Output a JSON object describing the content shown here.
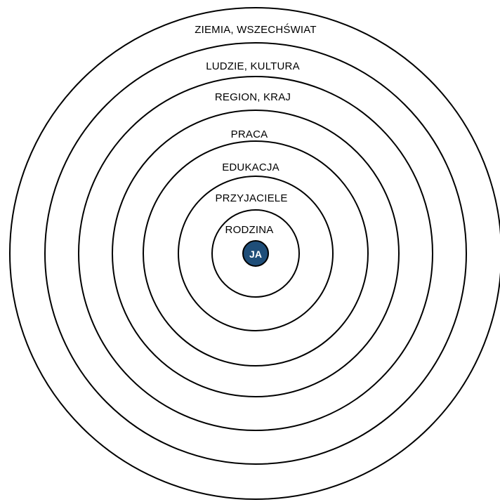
{
  "diagram": {
    "center": {
      "label": "JA",
      "fill_color": "#1f4e79"
    },
    "rings": [
      {
        "label": "RODZINA"
      },
      {
        "label": "PRZYJACIELE"
      },
      {
        "label": "EDUKACJA"
      },
      {
        "label": "PRACA"
      },
      {
        "label": "REGION, KRAJ"
      },
      {
        "label": "LUDZIE, KULTURA"
      },
      {
        "label": "ZIEMIA, WSZECHŚWIAT"
      }
    ],
    "ring_color": "#000000"
  }
}
